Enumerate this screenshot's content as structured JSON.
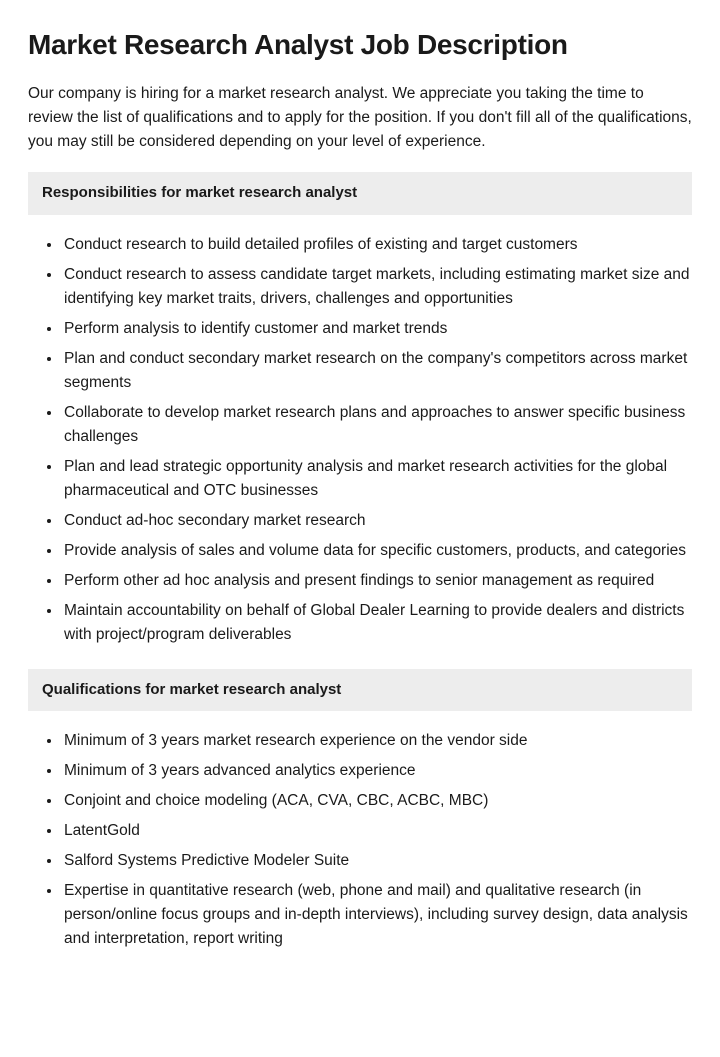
{
  "title": "Market Research Analyst Job Description",
  "intro": "Our company is hiring for a market research analyst. We appreciate you taking the time to review the list of qualifications and to apply for the position. If you don't fill all of the qualifications, you may still be considered depending on your level of experience.",
  "responsibilities": {
    "header": "Responsibilities for market research analyst",
    "items": [
      "Conduct research to build detailed profiles of existing and target customers",
      "Conduct research to assess candidate target markets, including estimating market size and identifying key market traits, drivers, challenges and opportunities",
      "Perform analysis to identify customer and market trends",
      "Plan and conduct secondary market research on the company's competitors across market segments",
      "Collaborate to develop market research plans and approaches to answer specific business challenges",
      "Plan and lead strategic opportunity analysis and market research activities for the global pharmaceutical and OTC businesses",
      "Conduct ad-hoc secondary market research",
      "Provide analysis of sales and volume data for specific customers, products, and categories",
      "Perform other ad hoc analysis and present findings to senior management as required",
      "Maintain accountability on behalf of Global Dealer Learning to provide dealers and districts with project/program deliverables"
    ]
  },
  "qualifications": {
    "header": "Qualifications for market research analyst",
    "items": [
      "Minimum of 3 years market research experience on the vendor side",
      "Minimum of 3 years advanced analytics experience",
      "Conjoint and choice modeling (ACA, CVA, CBC, ACBC, MBC)",
      "LatentGold",
      "Salford Systems Predictive Modeler Suite",
      "Expertise in quantitative research (web, phone and mail) and qualitative research (in person/online focus groups and in-depth interviews), including survey design, data analysis and interpretation, report writing"
    ]
  }
}
